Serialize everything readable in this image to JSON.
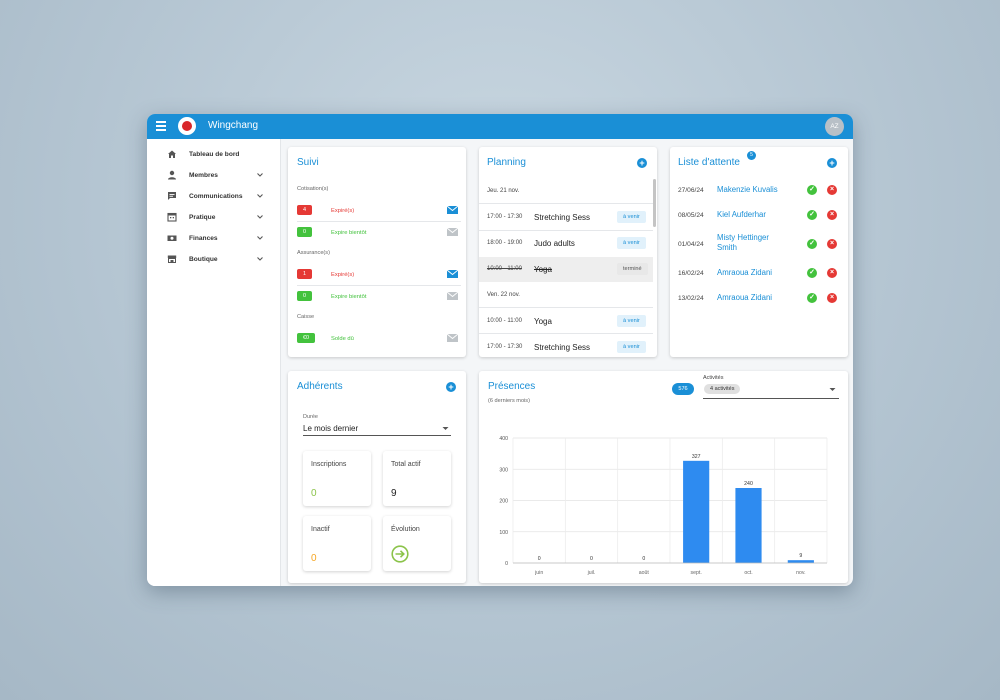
{
  "app": {
    "title": "Wingchang",
    "avatar": "AZ"
  },
  "nav": [
    {
      "label": "Tableau de bord",
      "icon": "home-icon"
    },
    {
      "label": "Membres",
      "icon": "person-icon"
    },
    {
      "label": "Communications",
      "icon": "chat-icon"
    },
    {
      "label": "Pratique",
      "icon": "calendar-icon"
    },
    {
      "label": "Finances",
      "icon": "money-icon"
    },
    {
      "label": "Boutique",
      "icon": "store-icon"
    }
  ],
  "suivi": {
    "title": "Suivi",
    "cotisation": {
      "label": "Cotisation(s)",
      "expired_count": "4",
      "expired_label": "Expiré(s)",
      "soon_count": "0",
      "soon_label": "Expire bientôt"
    },
    "assurance": {
      "label": "Assurance(s)",
      "expired_count": "1",
      "expired_label": "Expiré(s)",
      "soon_count": "0",
      "soon_label": "Expire bientôt"
    },
    "caisse": {
      "label": "Caisse",
      "amount": "€0",
      "label_due": "Solde dû"
    }
  },
  "planning": {
    "title": "Planning",
    "day1": "Jeu. 21 nov.",
    "day2": "Ven. 22 nov.",
    "sessions": [
      {
        "time": "17:00 - 17:30",
        "name": "Stretching Sess",
        "status": "à venir"
      },
      {
        "time": "18:00 - 19:00",
        "name": "Judo adults",
        "status": "à venir"
      },
      {
        "time": "10:00 - 11:00",
        "name": "Yoga",
        "status": "terminé"
      },
      {
        "time": "10:00 - 11:00",
        "name": "Yoga",
        "status": "à venir"
      },
      {
        "time": "17:00 - 17:30",
        "name": "Stretching Sess",
        "status": "à venir"
      }
    ]
  },
  "waitlist": {
    "title": "Liste d'attente",
    "count": "5",
    "items": [
      {
        "date": "27/06/24",
        "name": "Makenzie Kuvalis"
      },
      {
        "date": "08/05/24",
        "name": "Kiel Aufderhar"
      },
      {
        "date": "01/04/24",
        "name": "Misty Hettinger",
        "name2": "Smith"
      },
      {
        "date": "16/02/24",
        "name": "Amraoua Zidani"
      },
      {
        "date": "13/02/24",
        "name": "Amraoua Zidani"
      }
    ]
  },
  "adherents": {
    "title": "Adhérents",
    "duree_label": "Durée",
    "duree_value": "Le mois dernier",
    "tiles": [
      {
        "label": "Inscriptions",
        "value": "0",
        "color": "#8bc34a"
      },
      {
        "label": "Total actif",
        "value": "9",
        "color": "#222222"
      },
      {
        "label": "Inactif",
        "value": "0",
        "color": "#f5a623"
      },
      {
        "label": "Évolution",
        "icon": "arrow-right-circle-icon",
        "color": "#8bc34a"
      }
    ]
  },
  "presences": {
    "title": "Présences",
    "subtitle": "(6 derniers mois)",
    "total": "576",
    "activities_label": "Activités",
    "activities_value": "4 activités"
  },
  "chart_data": {
    "type": "bar",
    "categories": [
      "juin",
      "juil.",
      "août",
      "sept.",
      "oct.",
      "nov."
    ],
    "values": [
      0,
      0,
      0,
      327,
      240,
      9
    ],
    "ylim": [
      0,
      400
    ],
    "yticks": [
      0,
      100,
      200,
      300,
      400
    ],
    "grid": true,
    "color": "#2e8bf0"
  }
}
